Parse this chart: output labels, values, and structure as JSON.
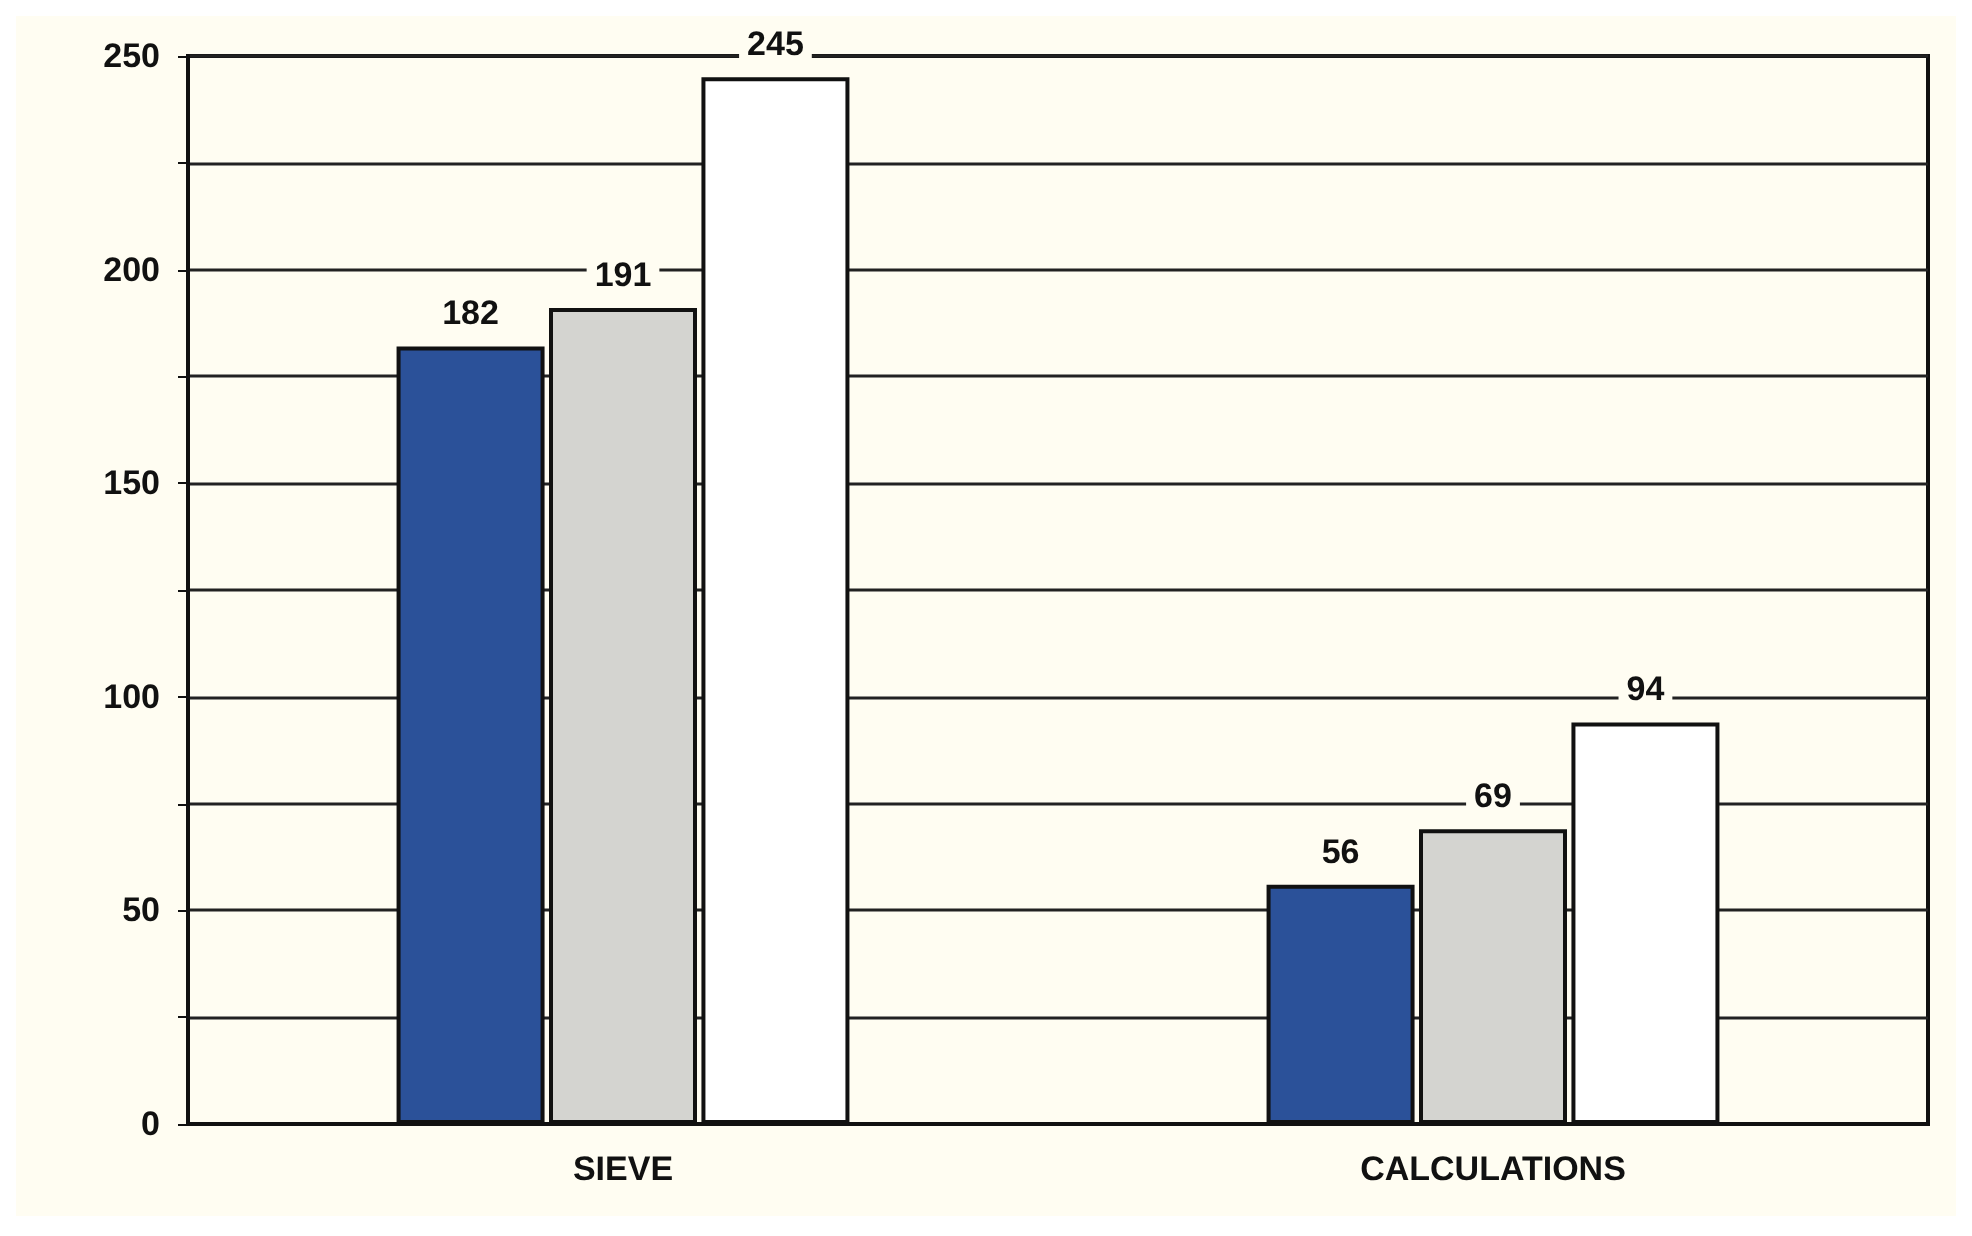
{
  "chart_data": {
    "type": "bar",
    "categories": [
      "SIEVE",
      "CALCULATIONS"
    ],
    "series": [
      {
        "color": "#2b5199",
        "values": [
          182,
          56
        ]
      },
      {
        "color": "#d4d4d0",
        "values": [
          191,
          69
        ]
      },
      {
        "color": "#ffffff",
        "values": [
          245,
          94
        ]
      }
    ],
    "ylim": [
      0,
      250
    ],
    "yticks": [
      0,
      {
        "value": 25,
        "label": null
      },
      50,
      {
        "value": 75,
        "label": null
      },
      100,
      {
        "value": 125,
        "label": null
      },
      150,
      {
        "value": 175,
        "label": null
      },
      200,
      {
        "value": 225,
        "label": null
      },
      250
    ],
    "grid": "y",
    "data_labels": true
  }
}
